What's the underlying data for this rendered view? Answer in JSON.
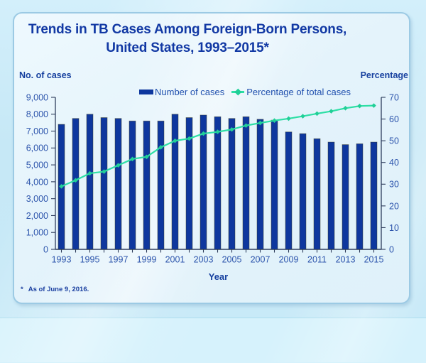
{
  "page": {
    "title_line1": "Trends in TB Cases Among Foreign-Born Persons,",
    "title_line2": "United States, 1993–2015*",
    "left_axis_title": "No. of cases",
    "right_axis_title": "Percentage",
    "x_axis_title": "Year",
    "footnote_marker": "*",
    "footnote_text": "As of June 9, 2016."
  },
  "legend": {
    "bars_label": "Number of cases",
    "line_label": "Percentage of total cases"
  },
  "colors": {
    "bar": "#0e379e",
    "bar_border": "rgba(60,60,30,0.55)",
    "line": "#2ddfa5",
    "marker": "#21cf97",
    "axis_line": "#2e3d5c",
    "axis_text": "#2d55ac",
    "title_text": "#1239a4"
  },
  "chart_data": {
    "type": "bar+line",
    "title": "Trends in TB Cases Among Foreign-Born Persons, United States, 1993–2015*",
    "footnote": "* As of June 9, 2016.",
    "grid": false,
    "legend_position": "top-center",
    "x": [
      1993,
      1994,
      1995,
      1996,
      1997,
      1998,
      1999,
      2000,
      2001,
      2002,
      2003,
      2004,
      2005,
      2006,
      2007,
      2008,
      2009,
      2010,
      2011,
      2012,
      2013,
      2014,
      2015
    ],
    "x_axis": {
      "title": "Year",
      "labeled_ticks": "odd years only"
    },
    "left_axis": {
      "title": "No. of cases",
      "min": 0,
      "max": 9000,
      "tick_step": 1000
    },
    "right_axis": {
      "title": "Percentage",
      "min": 0,
      "max": 70,
      "tick_step": 10
    },
    "series": [
      {
        "name": "Number of cases",
        "type": "bar",
        "axis": "left",
        "values": [
          7400,
          7750,
          8000,
          7800,
          7750,
          7600,
          7600,
          7600,
          8000,
          7800,
          7950,
          7850,
          7750,
          7850,
          7700,
          7650,
          6950,
          6850,
          6550,
          6350,
          6200,
          6250,
          6350
        ]
      },
      {
        "name": "Percentage of total cases",
        "type": "line",
        "axis": "right",
        "values": [
          29.0,
          31.8,
          35.0,
          35.8,
          38.7,
          41.6,
          42.6,
          47.0,
          50.0,
          51.0,
          53.3,
          54.1,
          55.2,
          57.0,
          58.2,
          59.3,
          60.2,
          61.3,
          62.5,
          63.6,
          65.0,
          66.0,
          66.2
        ]
      }
    ]
  }
}
